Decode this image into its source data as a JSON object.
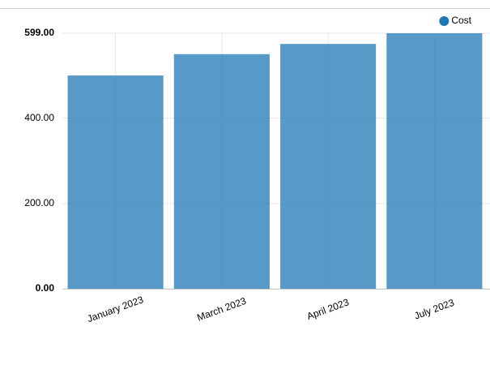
{
  "chart_data": {
    "type": "bar",
    "categories": [
      "January 2023",
      "March 2023",
      "April 2023",
      "July 2023"
    ],
    "series": [
      {
        "name": "Cost",
        "color": "#1f77b4",
        "values": [
          500,
          550,
          574,
          599
        ]
      }
    ],
    "ylim": [
      0,
      599
    ],
    "yticks": [
      {
        "value": 0,
        "label": "0.00"
      },
      {
        "value": 200,
        "label": "200.00"
      },
      {
        "value": 400,
        "label": "400.00"
      },
      {
        "value": 599,
        "label": "599.00"
      }
    ],
    "grid": true,
    "legend": "top-right"
  }
}
